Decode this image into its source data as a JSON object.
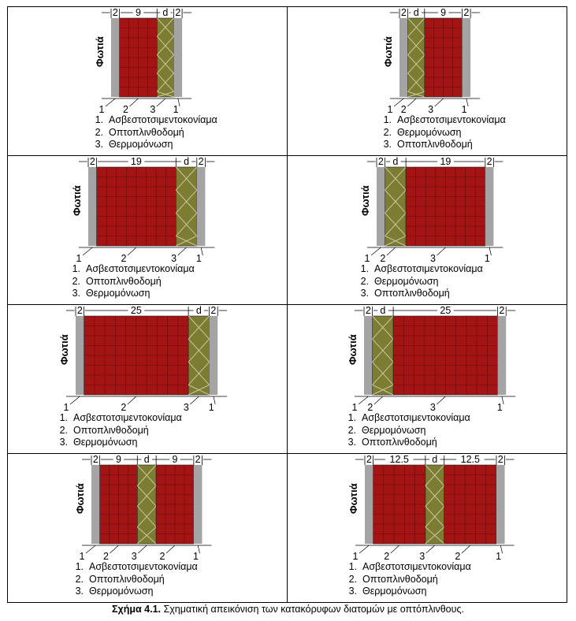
{
  "figure": {
    "fire_label": "Φωτιά",
    "caption_label": "Σχήμα 4.1.",
    "caption_text": " Σχηματική απεικόνιση των κατακόρυφων διατομών με οπτόπλινθους."
  },
  "colors": {
    "plaster": "#a4a4a4",
    "brick": "#a31414",
    "brick_grid": "#6b0909",
    "insulation": "#7c7c32",
    "insulation_x": "#c9c9a0",
    "line": "#000000"
  },
  "panels": [
    {
      "layers": [
        {
          "type": "plaster",
          "t": 2
        },
        {
          "type": "brick",
          "t": 9
        },
        {
          "type": "insulation",
          "t": 4
        },
        {
          "type": "plaster",
          "t": 2
        }
      ],
      "top_labels": [
        "2",
        "9",
        "d",
        "2"
      ],
      "bottom_labels": [
        "1",
        "2",
        "3",
        "1"
      ],
      "legend": [
        "Ασβεστοτσιμεντοκονίαμα",
        "Οπτοπλινθοδομή",
        "Θερμομόνωση"
      ]
    },
    {
      "layers": [
        {
          "type": "plaster",
          "t": 2
        },
        {
          "type": "insulation",
          "t": 4
        },
        {
          "type": "brick",
          "t": 9
        },
        {
          "type": "plaster",
          "t": 2
        }
      ],
      "top_labels": [
        "2",
        "d",
        "9",
        "2"
      ],
      "bottom_labels": [
        "1",
        "2",
        "3",
        "1"
      ],
      "legend": [
        "Ασβεστοτσιμεντοκονίαμα",
        "Θερμομόνωση",
        "Οπτοπλινθοδομή"
      ]
    },
    {
      "layers": [
        {
          "type": "plaster",
          "t": 2
        },
        {
          "type": "brick",
          "t": 19
        },
        {
          "type": "insulation",
          "t": 5
        },
        {
          "type": "plaster",
          "t": 2
        }
      ],
      "top_labels": [
        "2",
        "19",
        "d",
        "2"
      ],
      "bottom_labels": [
        "1",
        "2",
        "3",
        "1"
      ],
      "legend": [
        "Ασβεστοτσιμεντοκονίαμα",
        "Οπτοπλινθοδομή",
        "Θερμομόνωση"
      ]
    },
    {
      "layers": [
        {
          "type": "plaster",
          "t": 2
        },
        {
          "type": "insulation",
          "t": 5
        },
        {
          "type": "brick",
          "t": 19
        },
        {
          "type": "plaster",
          "t": 2
        }
      ],
      "top_labels": [
        "2",
        "d",
        "19",
        "2"
      ],
      "bottom_labels": [
        "1",
        "2",
        "3",
        "1"
      ],
      "legend": [
        "Ασβεστοτσιμεντοκονίαμα",
        "Θερμομόνωση",
        "Οπτοπλινθοδομή"
      ]
    },
    {
      "layers": [
        {
          "type": "plaster",
          "t": 2
        },
        {
          "type": "brick",
          "t": 25
        },
        {
          "type": "insulation",
          "t": 5
        },
        {
          "type": "plaster",
          "t": 2
        }
      ],
      "top_labels": [
        "2",
        "25",
        "d",
        "2"
      ],
      "bottom_labels": [
        "1",
        "2",
        "3",
        "1"
      ],
      "legend": [
        "Ασβεστοτσιμεντοκονίαμα",
        "Οπτοπλινθοδομή",
        "Θερμομόνωση"
      ]
    },
    {
      "layers": [
        {
          "type": "plaster",
          "t": 2
        },
        {
          "type": "insulation",
          "t": 5
        },
        {
          "type": "brick",
          "t": 25
        },
        {
          "type": "plaster",
          "t": 2
        }
      ],
      "top_labels": [
        "2",
        "d",
        "25",
        "2"
      ],
      "bottom_labels": [
        "1",
        "2",
        "3",
        "1"
      ],
      "legend": [
        "Ασβεστοτσιμεντοκονίαμα",
        "Θερμομόνωση",
        "Οπτοπλινθοδομή"
      ]
    },
    {
      "layers": [
        {
          "type": "plaster",
          "t": 2
        },
        {
          "type": "brick",
          "t": 9
        },
        {
          "type": "insulation",
          "t": 4.5
        },
        {
          "type": "brick",
          "t": 9
        },
        {
          "type": "plaster",
          "t": 2
        }
      ],
      "top_labels": [
        "2",
        "9",
        "d",
        "9",
        "2"
      ],
      "bottom_labels": [
        "1",
        "2",
        "3",
        "2",
        "1"
      ],
      "legend": [
        "Ασβεστοτσιμεντοκονίαμα",
        "Οπτοπλινθοδομή",
        "Θερμομόνωση"
      ]
    },
    {
      "layers": [
        {
          "type": "plaster",
          "t": 2
        },
        {
          "type": "brick",
          "t": 12.5
        },
        {
          "type": "insulation",
          "t": 4.5
        },
        {
          "type": "brick",
          "t": 12.5
        },
        {
          "type": "plaster",
          "t": 2
        }
      ],
      "top_labels": [
        "2",
        "12.5",
        "d",
        "12.5",
        "2"
      ],
      "bottom_labels": [
        "1",
        "2",
        "3",
        "2",
        "1"
      ],
      "legend": [
        "Ασβεστοτσιμεντοκονίαμα",
        "Οπτοπλινθοδομή",
        "Θερμομόνωση"
      ]
    }
  ]
}
